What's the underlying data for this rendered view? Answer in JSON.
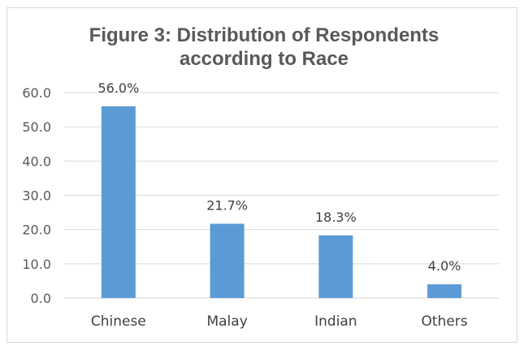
{
  "chart_data": {
    "type": "bar",
    "title_lines": [
      "Figure 3: Distribution of Respondents",
      "according to Race"
    ],
    "categories": [
      "Chinese",
      "Malay",
      "Indian",
      "Others"
    ],
    "values": [
      56.0,
      21.7,
      18.3,
      4.0
    ],
    "data_labels": [
      "56.0%",
      "21.7%",
      "18.3%",
      "4.0%"
    ],
    "y_ticks": [
      "0.0",
      "10.0",
      "20.0",
      "30.0",
      "40.0",
      "50.0",
      "60.0"
    ],
    "ylim": [
      0,
      60
    ],
    "xlabel": "",
    "ylabel": "",
    "grid": true,
    "legend": "none",
    "colors": {
      "bar": "#5b9bd5",
      "grid": "#d9d9d9",
      "title": "#595959",
      "text": "#404040"
    }
  }
}
